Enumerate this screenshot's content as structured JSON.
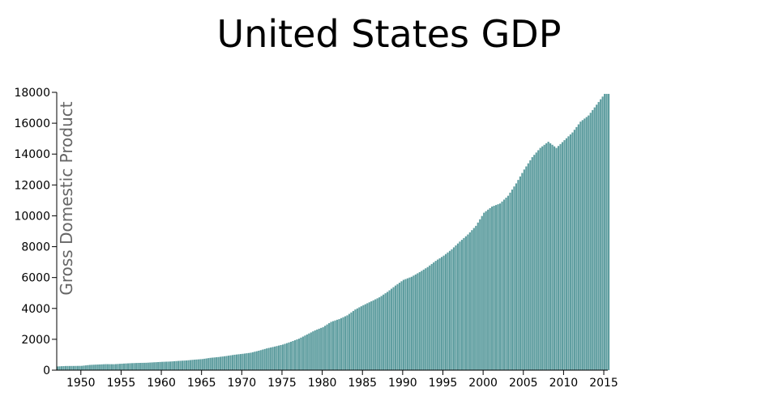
{
  "chart_data": {
    "type": "bar",
    "title": "United States GDP",
    "xlabel": "",
    "ylabel": "Gross Domestic Product",
    "xlim": [
      1947,
      2015.5
    ],
    "ylim": [
      0,
      18000
    ],
    "x_ticks": [
      1950,
      1955,
      1960,
      1965,
      1970,
      1975,
      1980,
      1985,
      1990,
      1995,
      2000,
      2005,
      2010,
      2015
    ],
    "y_ticks": [
      0,
      2000,
      4000,
      6000,
      8000,
      10000,
      12000,
      14000,
      16000,
      18000
    ],
    "grid": false,
    "legend": "none",
    "bar_color": "#5f9ea0",
    "axis_color": "#000000",
    "ylabel_color": "#666666",
    "points": [
      [
        1947,
        243
      ],
      [
        1948,
        270
      ],
      [
        1949,
        273
      ],
      [
        1950,
        280
      ],
      [
        1951,
        340
      ],
      [
        1952,
        365
      ],
      [
        1953,
        390
      ],
      [
        1954,
        385
      ],
      [
        1955,
        420
      ],
      [
        1956,
        450
      ],
      [
        1957,
        470
      ],
      [
        1958,
        480
      ],
      [
        1959,
        510
      ],
      [
        1960,
        540
      ],
      [
        1961,
        560
      ],
      [
        1962,
        600
      ],
      [
        1963,
        630
      ],
      [
        1964,
        680
      ],
      [
        1965,
        720
      ],
      [
        1966,
        800
      ],
      [
        1967,
        850
      ],
      [
        1968,
        920
      ],
      [
        1969,
        1000
      ],
      [
        1970,
        1060
      ],
      [
        1971,
        1130
      ],
      [
        1972,
        1260
      ],
      [
        1973,
        1410
      ],
      [
        1974,
        1530
      ],
      [
        1975,
        1660
      ],
      [
        1976,
        1840
      ],
      [
        1977,
        2040
      ],
      [
        1978,
        2310
      ],
      [
        1979,
        2580
      ],
      [
        1980,
        2790
      ],
      [
        1981,
        3130
      ],
      [
        1982,
        3310
      ],
      [
        1983,
        3550
      ],
      [
        1984,
        3930
      ],
      [
        1985,
        4210
      ],
      [
        1986,
        4460
      ],
      [
        1987,
        4720
      ],
      [
        1988,
        5070
      ],
      [
        1989,
        5480
      ],
      [
        1990,
        5850
      ],
      [
        1991,
        6050
      ],
      [
        1992,
        6350
      ],
      [
        1993,
        6680
      ],
      [
        1994,
        7080
      ],
      [
        1995,
        7420
      ],
      [
        1996,
        7830
      ],
      [
        1997,
        8330
      ],
      [
        1998,
        8790
      ],
      [
        1999,
        9350
      ],
      [
        2000,
        10200
      ],
      [
        2001,
        10600
      ],
      [
        2002,
        10800
      ],
      [
        2003,
        11300
      ],
      [
        2004,
        12100
      ],
      [
        2005,
        13000
      ],
      [
        2006,
        13800
      ],
      [
        2007,
        14400
      ],
      [
        2008,
        14800
      ],
      [
        2009,
        14400
      ],
      [
        2010,
        14900
      ],
      [
        2011,
        15400
      ],
      [
        2012,
        16100
      ],
      [
        2013,
        16500
      ],
      [
        2014,
        17200
      ],
      [
        2015,
        17900
      ]
    ]
  }
}
